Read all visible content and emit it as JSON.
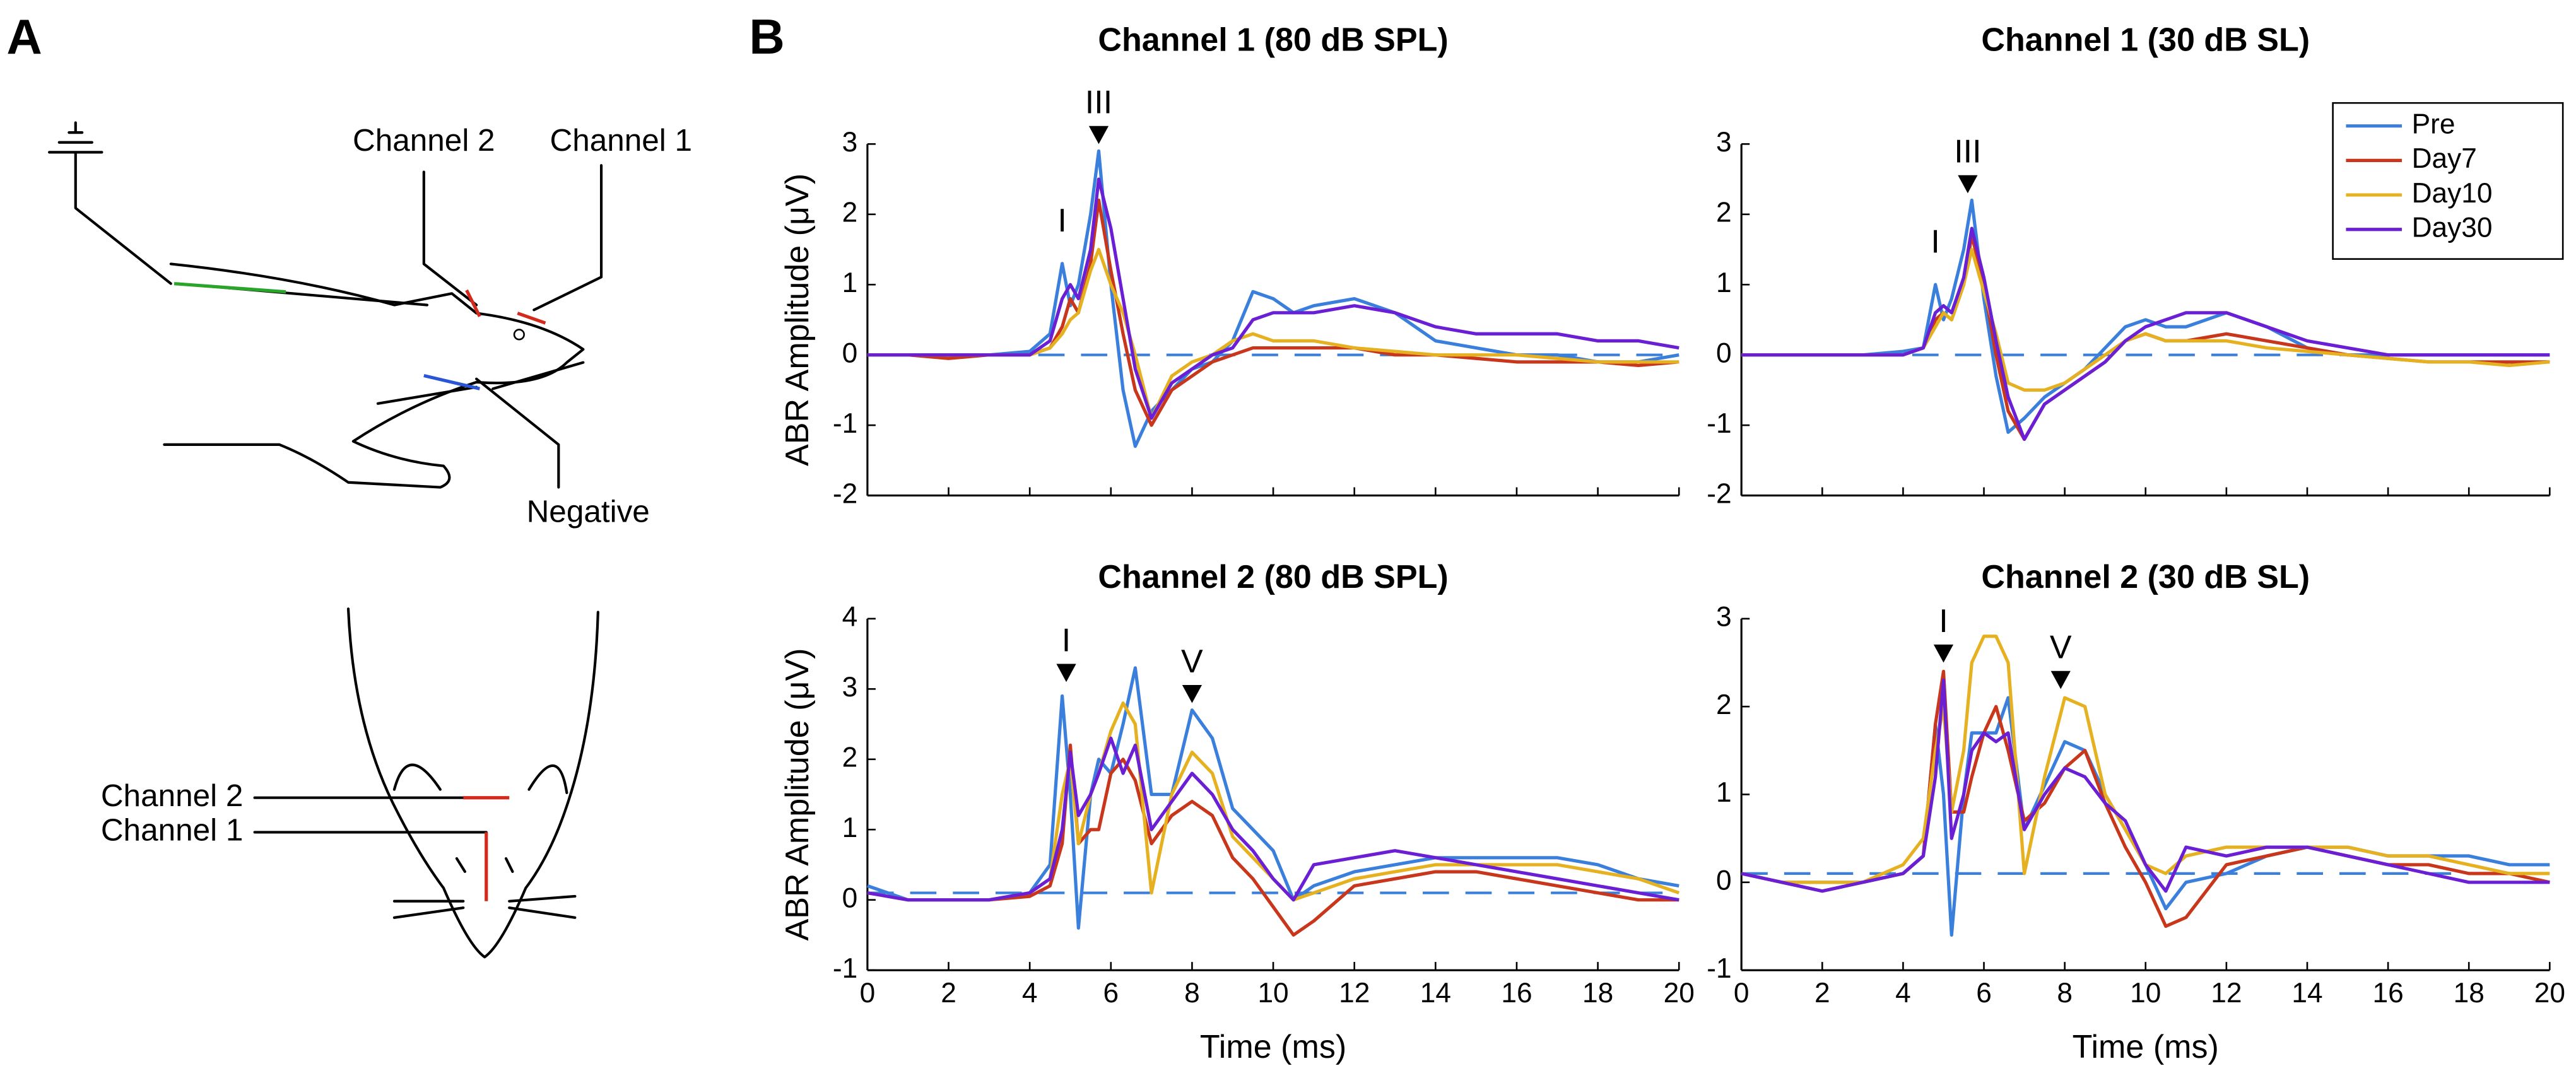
{
  "panel_labels": [
    "A",
    "B"
  ],
  "diagram": {
    "labels": [
      "Channel 2",
      "Channel 1",
      "Negative",
      "Channel 2",
      "Channel 1"
    ]
  },
  "chart_data": [
    {
      "type": "line",
      "title": "Channel 1 (80 dB SPL)",
      "ylabel": "ABR Amplitude (μV)",
      "x": [
        0,
        1,
        2,
        3,
        4,
        4.5,
        4.8,
        5,
        5.2,
        5.5,
        5.7,
        6,
        6.3,
        6.6,
        7,
        7.5,
        8,
        8.5,
        9,
        9.5,
        10,
        10.5,
        11,
        12,
        13,
        14,
        15,
        16,
        17,
        18,
        19,
        20
      ],
      "xlim": [
        0,
        20
      ],
      "xticks": [
        0,
        2,
        4,
        6,
        8,
        10,
        12,
        14,
        16,
        18,
        20
      ],
      "show_xtick_labels": false,
      "ylim": [
        -2,
        3
      ],
      "yticks": [
        -2,
        -1,
        0,
        1,
        2,
        3
      ],
      "baseline": 0,
      "baseline_color": "#3a7fdc",
      "legend": false,
      "annotations": [
        {
          "text": "I",
          "x": 4.8,
          "y": 1.6,
          "arrow": false
        },
        {
          "text": "III",
          "x": 5.7,
          "y": 3.0,
          "arrow": true
        }
      ],
      "series": [
        {
          "name": "Pre",
          "color": "#3a7fdc",
          "values": [
            0,
            0,
            0,
            0,
            0.05,
            0.3,
            1.3,
            0.7,
            1.0,
            2.0,
            2.9,
            1.0,
            -0.5,
            -1.3,
            -0.8,
            -0.5,
            -0.2,
            -0.1,
            0.2,
            0.9,
            0.8,
            0.6,
            0.7,
            0.8,
            0.6,
            0.2,
            0.1,
            0,
            0,
            -0.1,
            -0.1,
            0
          ]
        },
        {
          "name": "Day7",
          "color": "#c8371b",
          "values": [
            0,
            0,
            -0.05,
            0,
            0,
            0.1,
            0.4,
            0.8,
            0.6,
            1.3,
            2.2,
            1.2,
            0.3,
            -0.5,
            -1.0,
            -0.5,
            -0.3,
            -0.1,
            0,
            0.1,
            0.1,
            0.1,
            0.1,
            0.1,
            0,
            0,
            -0.05,
            -0.1,
            -0.1,
            -0.1,
            -0.15,
            -0.1
          ]
        },
        {
          "name": "Day10",
          "color": "#e6b120",
          "values": [
            0,
            0,
            0,
            0,
            0,
            0.1,
            0.3,
            0.5,
            0.6,
            1.2,
            1.5,
            1.0,
            0.6,
            0.0,
            -0.9,
            -0.3,
            -0.1,
            0,
            0.2,
            0.3,
            0.2,
            0.2,
            0.2,
            0.1,
            0.05,
            0,
            0,
            0,
            -0.05,
            -0.1,
            -0.1,
            -0.1
          ]
        },
        {
          "name": "Day30",
          "color": "#6a1fd4",
          "values": [
            0,
            0,
            0,
            0,
            0,
            0.2,
            0.8,
            1.0,
            0.8,
            1.5,
            2.5,
            1.8,
            0.8,
            -0.2,
            -0.9,
            -0.4,
            -0.2,
            0,
            0.1,
            0.5,
            0.6,
            0.6,
            0.6,
            0.7,
            0.6,
            0.4,
            0.3,
            0.3,
            0.3,
            0.2,
            0.2,
            0.1
          ]
        }
      ]
    },
    {
      "type": "line",
      "title": "Channel 1 (30 dB SL)",
      "x": [
        0,
        1,
        2,
        3,
        4,
        4.5,
        4.8,
        5,
        5.2,
        5.5,
        5.7,
        6,
        6.3,
        6.6,
        7,
        7.5,
        8,
        8.5,
        9,
        9.5,
        10,
        10.5,
        11,
        12,
        13,
        14,
        15,
        16,
        17,
        18,
        19,
        20
      ],
      "xlim": [
        0,
        20
      ],
      "xticks": [
        0,
        2,
        4,
        6,
        8,
        10,
        12,
        14,
        16,
        18,
        20
      ],
      "show_xtick_labels": false,
      "ylim": [
        -2,
        3
      ],
      "yticks": [
        -2,
        -1,
        0,
        1,
        2,
        3
      ],
      "baseline": 0,
      "baseline_color": "#3a7fdc",
      "legend": true,
      "legend_loc": "upper right",
      "annotations": [
        {
          "text": "I",
          "x": 4.8,
          "y": 1.3,
          "arrow": false
        },
        {
          "text": "III",
          "x": 5.6,
          "y": 2.3,
          "arrow": true
        }
      ],
      "series": [
        {
          "name": "Pre",
          "color": "#3a7fdc",
          "values": [
            0,
            0,
            0,
            0,
            0.05,
            0.1,
            1.0,
            0.5,
            0.8,
            1.5,
            2.2,
            0.8,
            -0.3,
            -1.1,
            -0.9,
            -0.6,
            -0.4,
            -0.2,
            0.1,
            0.4,
            0.5,
            0.4,
            0.4,
            0.6,
            0.4,
            0.1,
            0,
            0,
            0,
            0,
            0,
            0
          ]
        },
        {
          "name": "Day7",
          "color": "#c8371b",
          "values": [
            0,
            0,
            0,
            0,
            0,
            0.1,
            0.5,
            0.6,
            0.5,
            1.0,
            1.7,
            1.0,
            0.0,
            -0.8,
            -1.2,
            -0.7,
            -0.5,
            -0.3,
            -0.1,
            0.2,
            0.3,
            0.2,
            0.2,
            0.3,
            0.2,
            0.1,
            0,
            -0.05,
            -0.1,
            -0.1,
            -0.1,
            -0.1
          ]
        },
        {
          "name": "Day10",
          "color": "#e6b120",
          "values": [
            0,
            0,
            0,
            0,
            0,
            0.1,
            0.4,
            0.6,
            0.5,
            1.0,
            1.5,
            0.9,
            0.3,
            -0.4,
            -0.5,
            -0.5,
            -0.4,
            -0.2,
            0,
            0.2,
            0.3,
            0.2,
            0.2,
            0.2,
            0.1,
            0.05,
            0,
            -0.05,
            -0.1,
            -0.1,
            -0.15,
            -0.1
          ]
        },
        {
          "name": "Day30",
          "color": "#6a1fd4",
          "values": [
            0,
            0,
            0,
            0,
            0,
            0.1,
            0.6,
            0.7,
            0.6,
            1.1,
            1.8,
            1.1,
            0.2,
            -0.6,
            -1.2,
            -0.7,
            -0.5,
            -0.3,
            -0.1,
            0.2,
            0.4,
            0.5,
            0.6,
            0.6,
            0.4,
            0.2,
            0.1,
            0,
            0,
            0,
            0,
            0
          ]
        }
      ]
    },
    {
      "type": "line",
      "title": "Channel 2 (80 dB SPL)",
      "ylabel": "ABR Amplitude (μV)",
      "xlabel": "Time (ms)",
      "x": [
        0,
        1,
        2,
        3,
        4,
        4.5,
        4.8,
        5,
        5.2,
        5.5,
        5.7,
        6,
        6.3,
        6.6,
        7,
        7.5,
        8,
        8.5,
        9,
        9.5,
        10,
        10.5,
        11,
        12,
        13,
        14,
        15,
        16,
        17,
        18,
        19,
        20
      ],
      "xlim": [
        0,
        20
      ],
      "xticks": [
        0,
        2,
        4,
        6,
        8,
        10,
        12,
        14,
        16,
        18,
        20
      ],
      "show_xtick_labels": true,
      "ylim": [
        -1,
        4
      ],
      "yticks": [
        -1,
        0,
        1,
        2,
        3,
        4
      ],
      "baseline": 0.1,
      "baseline_color": "#3a7fdc",
      "legend": false,
      "annotations": [
        {
          "text": "I",
          "x": 4.9,
          "y": 3.1,
          "arrow": true
        },
        {
          "text": "V",
          "x": 8.0,
          "y": 2.8,
          "arrow": true
        }
      ],
      "series": [
        {
          "name": "Pre",
          "color": "#3a7fdc",
          "values": [
            0.2,
            0,
            0,
            0,
            0.1,
            0.5,
            2.9,
            1.5,
            -0.4,
            1.5,
            2.0,
            1.8,
            2.5,
            3.3,
            1.5,
            1.5,
            2.7,
            2.3,
            1.3,
            1.0,
            0.7,
            0.0,
            0.2,
            0.4,
            0.5,
            0.6,
            0.6,
            0.6,
            0.6,
            0.5,
            0.3,
            0.2
          ]
        },
        {
          "name": "Day7",
          "color": "#c8371b",
          "values": [
            0.1,
            0,
            0,
            0,
            0.05,
            0.2,
            0.8,
            2.2,
            0.8,
            1.0,
            1.0,
            1.8,
            2.0,
            1.7,
            0.8,
            1.2,
            1.4,
            1.2,
            0.6,
            0.3,
            -0.1,
            -0.5,
            -0.3,
            0.2,
            0.3,
            0.4,
            0.4,
            0.3,
            0.2,
            0.1,
            0,
            0
          ]
        },
        {
          "name": "Day10",
          "color": "#e6b120",
          "values": [
            0.1,
            0,
            0,
            0,
            0.1,
            0.3,
            1.5,
            2.0,
            0.8,
            1.5,
            1.8,
            2.4,
            2.8,
            2.5,
            0.1,
            1.5,
            2.1,
            1.8,
            0.9,
            0.6,
            0.3,
            0.0,
            0.1,
            0.3,
            0.4,
            0.5,
            0.5,
            0.5,
            0.5,
            0.4,
            0.3,
            0.1
          ]
        },
        {
          "name": "Day30",
          "color": "#6a1fd4",
          "values": [
            0.1,
            0,
            0,
            0,
            0.1,
            0.3,
            1.0,
            2.1,
            1.2,
            1.5,
            1.8,
            2.3,
            1.8,
            2.2,
            1.0,
            1.4,
            1.8,
            1.5,
            1.0,
            0.7,
            0.3,
            0.0,
            0.5,
            0.6,
            0.7,
            0.6,
            0.5,
            0.4,
            0.3,
            0.2,
            0.1,
            0
          ]
        }
      ]
    },
    {
      "type": "line",
      "title": "Channel 2 (30 dB SL)",
      "xlabel": "Time (ms)",
      "x": [
        0,
        1,
        2,
        3,
        4,
        4.5,
        4.8,
        5,
        5.2,
        5.5,
        5.7,
        6,
        6.3,
        6.6,
        7,
        7.5,
        8,
        8.5,
        9,
        9.5,
        10,
        10.5,
        11,
        12,
        13,
        14,
        15,
        16,
        17,
        18,
        19,
        20
      ],
      "xlim": [
        0,
        20
      ],
      "xticks": [
        0,
        2,
        4,
        6,
        8,
        10,
        12,
        14,
        16,
        18,
        20
      ],
      "show_xtick_labels": true,
      "ylim": [
        -1,
        3
      ],
      "yticks": [
        -1,
        0,
        1,
        2,
        3
      ],
      "baseline": 0.1,
      "baseline_color": "#3a7fdc",
      "legend": false,
      "annotations": [
        {
          "text": "I",
          "x": 5.0,
          "y": 2.5,
          "arrow": true
        },
        {
          "text": "V",
          "x": 7.9,
          "y": 2.2,
          "arrow": true
        }
      ],
      "series": [
        {
          "name": "Pre",
          "color": "#3a7fdc",
          "values": [
            0.1,
            0,
            0,
            0,
            0.1,
            0.3,
            1.8,
            1.0,
            -0.6,
            1.0,
            1.7,
            1.7,
            1.7,
            2.1,
            0.6,
            1.1,
            1.6,
            1.5,
            1.0,
            0.6,
            0.2,
            -0.3,
            0.0,
            0.1,
            0.3,
            0.4,
            0.4,
            0.3,
            0.3,
            0.3,
            0.2,
            0.2
          ]
        },
        {
          "name": "Day7",
          "color": "#c8371b",
          "values": [
            0.1,
            0,
            -0.1,
            0,
            0.1,
            0.3,
            1.8,
            2.4,
            0.8,
            0.8,
            1.2,
            1.7,
            2.0,
            1.5,
            0.7,
            0.9,
            1.3,
            1.5,
            0.9,
            0.4,
            0.0,
            -0.5,
            -0.4,
            0.2,
            0.3,
            0.4,
            0.3,
            0.2,
            0.2,
            0.1,
            0.1,
            0
          ]
        },
        {
          "name": "Day10",
          "color": "#e6b120",
          "values": [
            0.1,
            0,
            0,
            0,
            0.2,
            0.5,
            1.5,
            2.0,
            0.8,
            1.5,
            2.5,
            2.8,
            2.8,
            2.5,
            0.1,
            1.2,
            2.1,
            2.0,
            1.0,
            0.6,
            0.2,
            0.1,
            0.3,
            0.4,
            0.4,
            0.4,
            0.4,
            0.3,
            0.3,
            0.2,
            0.1,
            0.1
          ]
        },
        {
          "name": "Day30",
          "color": "#6a1fd4",
          "values": [
            0.1,
            0,
            -0.1,
            0,
            0.1,
            0.3,
            1.2,
            2.3,
            0.5,
            1.0,
            1.5,
            1.7,
            1.6,
            1.7,
            0.6,
            1.0,
            1.3,
            1.2,
            0.9,
            0.7,
            0.2,
            -0.1,
            0.4,
            0.3,
            0.4,
            0.4,
            0.3,
            0.2,
            0.1,
            0,
            0,
            0
          ]
        }
      ]
    }
  ]
}
